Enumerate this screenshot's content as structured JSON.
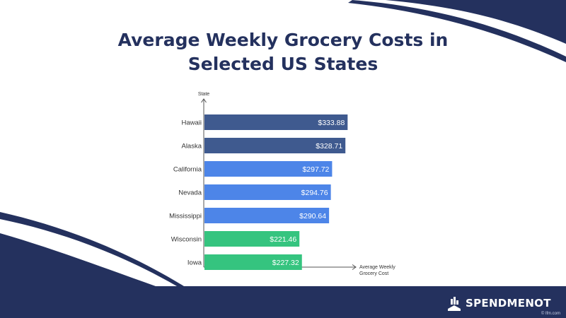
{
  "header": {
    "title_line1": "Average Weekly Grocery Costs in",
    "title_line2": "Selected US States"
  },
  "brand": {
    "name": "SPENDMENOT",
    "icon": "spendmenot-logo-icon"
  },
  "watermark": "© lfm.com",
  "colors": {
    "navy": "#24315e",
    "dark_blue_bar": "#3f5a8f",
    "light_blue_bar": "#4d85e8",
    "green_bar": "#35c47f"
  },
  "chart_data": {
    "type": "bar",
    "orientation": "horizontal",
    "ylabel": "State",
    "xlabel_line1": "Average Weekly",
    "xlabel_line2": "Grocery Cost",
    "categories": [
      "Hawaii",
      "Alaska",
      "California",
      "Nevada",
      "Mississippi",
      "Wisconsin",
      "Iowa"
    ],
    "values": [
      333.88,
      328.71,
      297.72,
      294.76,
      290.64,
      221.46,
      227.32
    ],
    "value_labels": [
      "$333.88",
      "$328.71",
      "$297.72",
      "$294.76",
      "$290.64",
      "$221.46",
      "$227.32"
    ],
    "bar_colors": [
      "#3f5a8f",
      "#3f5a8f",
      "#4d85e8",
      "#4d85e8",
      "#4d85e8",
      "#35c47f",
      "#35c47f"
    ],
    "xlim": [
      0,
      395
    ],
    "grid": false,
    "legend": "none"
  }
}
